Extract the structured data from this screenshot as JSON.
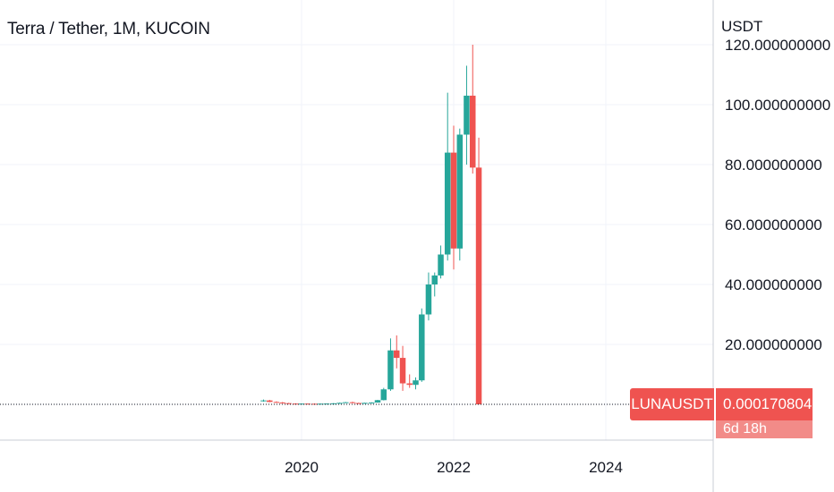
{
  "header": {
    "title": "Terra / Tether, 1M, KUCOIN"
  },
  "price_axis": {
    "unit": "USDT"
  },
  "last_price": {
    "symbol": "LUNAUSDT",
    "price": "0.000170804",
    "countdown": "6d 18h"
  },
  "colors": {
    "up": "#26a69a",
    "down": "#ef5350",
    "grid": "#f0f3fa",
    "axis_text": "#131722"
  },
  "chart_data": {
    "type": "candlestick",
    "title": "Terra / Tether, 1M, KUCOIN",
    "ylabel": "USDT",
    "ylim": [
      -11,
      120
    ],
    "y_ticks": [
      {
        "value": 120,
        "label": "120.000000000"
      },
      {
        "value": 100,
        "label": "100.000000000"
      },
      {
        "value": 80,
        "label": "80.000000000"
      },
      {
        "value": 60,
        "label": "60.000000000"
      },
      {
        "value": 40,
        "label": "40.000000000"
      },
      {
        "value": 20,
        "label": "20.000000000"
      }
    ],
    "x_ticks": [
      {
        "value": 2020.0,
        "label": "2020"
      },
      {
        "value": 2022.0,
        "label": "2022"
      },
      {
        "value": 2024.0,
        "label": "2024"
      }
    ],
    "xlim": [
      2016.8,
      2025.4
    ],
    "candles": [
      {
        "t": 2019.5,
        "o": 1.1,
        "h": 1.6,
        "l": 0.9,
        "c": 1.3
      },
      {
        "t": 2019.58,
        "o": 1.3,
        "h": 1.5,
        "l": 0.7,
        "c": 0.8
      },
      {
        "t": 2019.67,
        "o": 0.8,
        "h": 1.0,
        "l": 0.5,
        "c": 0.6
      },
      {
        "t": 2019.75,
        "o": 0.6,
        "h": 0.8,
        "l": 0.3,
        "c": 0.4
      },
      {
        "t": 2019.83,
        "o": 0.4,
        "h": 0.5,
        "l": 0.2,
        "c": 0.25
      },
      {
        "t": 2019.92,
        "o": 0.25,
        "h": 0.35,
        "l": 0.18,
        "c": 0.22
      },
      {
        "t": 2020.0,
        "o": 0.22,
        "h": 0.3,
        "l": 0.18,
        "c": 0.24
      },
      {
        "t": 2020.08,
        "o": 0.24,
        "h": 0.3,
        "l": 0.15,
        "c": 0.2
      },
      {
        "t": 2020.17,
        "o": 0.2,
        "h": 0.26,
        "l": 0.12,
        "c": 0.15
      },
      {
        "t": 2020.25,
        "o": 0.15,
        "h": 0.25,
        "l": 0.12,
        "c": 0.22
      },
      {
        "t": 2020.33,
        "o": 0.22,
        "h": 0.3,
        "l": 0.18,
        "c": 0.26
      },
      {
        "t": 2020.42,
        "o": 0.26,
        "h": 0.4,
        "l": 0.22,
        "c": 0.35
      },
      {
        "t": 2020.5,
        "o": 0.35,
        "h": 0.6,
        "l": 0.3,
        "c": 0.5
      },
      {
        "t": 2020.58,
        "o": 0.5,
        "h": 0.8,
        "l": 0.45,
        "c": 0.7
      },
      {
        "t": 2020.67,
        "o": 0.7,
        "h": 0.9,
        "l": 0.4,
        "c": 0.45
      },
      {
        "t": 2020.75,
        "o": 0.45,
        "h": 0.55,
        "l": 0.3,
        "c": 0.35
      },
      {
        "t": 2020.83,
        "o": 0.35,
        "h": 0.55,
        "l": 0.3,
        "c": 0.5
      },
      {
        "t": 2020.92,
        "o": 0.5,
        "h": 0.7,
        "l": 0.35,
        "c": 0.6
      },
      {
        "t": 2021.0,
        "o": 0.6,
        "h": 1.5,
        "l": 0.55,
        "c": 1.4
      },
      {
        "t": 2021.08,
        "o": 1.4,
        "h": 5.5,
        "l": 1.3,
        "c": 5.0
      },
      {
        "t": 2021.17,
        "o": 5.0,
        "h": 22.0,
        "l": 4.5,
        "c": 18.0
      },
      {
        "t": 2021.25,
        "o": 18.0,
        "h": 23.0,
        "l": 12.0,
        "c": 15.5
      },
      {
        "t": 2021.33,
        "o": 15.5,
        "h": 19.5,
        "l": 4.5,
        "c": 7.0
      },
      {
        "t": 2021.42,
        "o": 7.0,
        "h": 10.0,
        "l": 5.5,
        "c": 6.5
      },
      {
        "t": 2021.5,
        "o": 6.5,
        "h": 9.0,
        "l": 5.0,
        "c": 8.0
      },
      {
        "t": 2021.58,
        "o": 8.0,
        "h": 32.0,
        "l": 7.5,
        "c": 30.0
      },
      {
        "t": 2021.67,
        "o": 30.0,
        "h": 44.0,
        "l": 28.0,
        "c": 40.0
      },
      {
        "t": 2021.75,
        "o": 40.0,
        "h": 44.0,
        "l": 36.0,
        "c": 43.0
      },
      {
        "t": 2021.83,
        "o": 43.0,
        "h": 53.0,
        "l": 42.0,
        "c": 50.0
      },
      {
        "t": 2021.92,
        "o": 50.0,
        "h": 104.0,
        "l": 48.0,
        "c": 84.0
      },
      {
        "t": 2022.0,
        "o": 84.0,
        "h": 93.0,
        "l": 45.0,
        "c": 52.0
      },
      {
        "t": 2022.08,
        "o": 52.0,
        "h": 92.0,
        "l": 48.0,
        "c": 90.0
      },
      {
        "t": 2022.17,
        "o": 90.0,
        "h": 113.0,
        "l": 80.0,
        "c": 103.0
      },
      {
        "t": 2022.25,
        "o": 103.0,
        "h": 120.0,
        "l": 77.0,
        "c": 79.0
      },
      {
        "t": 2022.33,
        "o": 79.0,
        "h": 89.0,
        "l": 0.00017,
        "c": 0.00017
      }
    ]
  }
}
